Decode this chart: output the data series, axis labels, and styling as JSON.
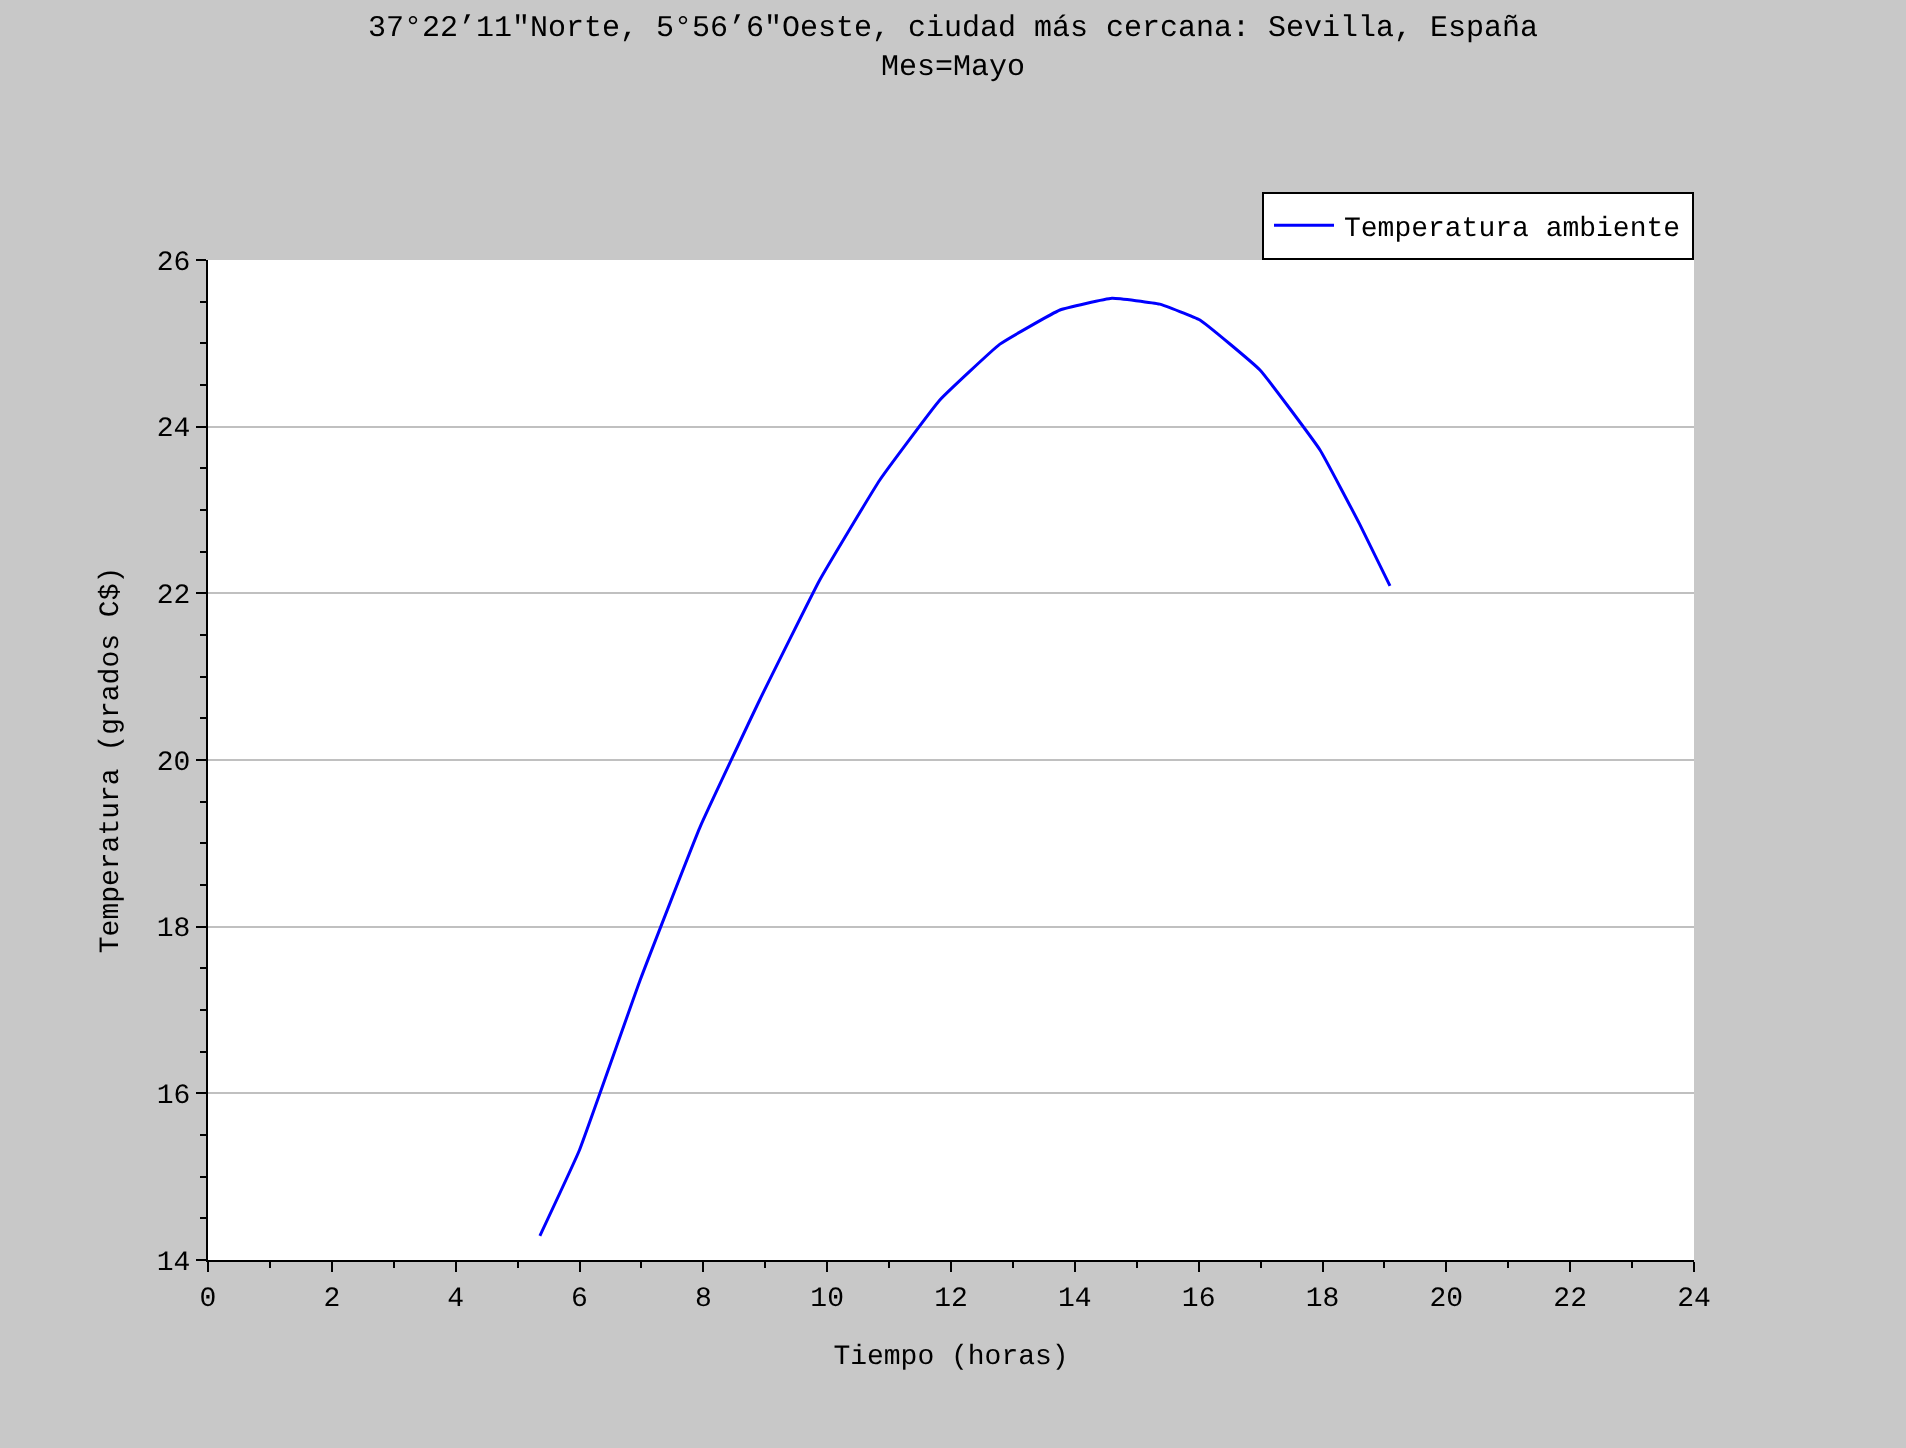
{
  "chart_data": {
    "type": "line",
    "title": "37°22’11\"Norte, 5°56’6\"Oeste, ciudad más cercana: Sevilla, España\nMes=Mayo",
    "xlabel": "Tiempo (horas)",
    "ylabel": "Temperatura (grados C$)",
    "xlim": [
      0,
      24
    ],
    "xticks": [
      0,
      2,
      4,
      6,
      8,
      10,
      12,
      14,
      16,
      18,
      20,
      22,
      24
    ],
    "ylim": [
      14,
      26
    ],
    "yticks": [
      14,
      16,
      18,
      20,
      22,
      24,
      26
    ],
    "grid": "y",
    "legend": "top right",
    "marker": "none",
    "line_style": "solid",
    "series": [
      {
        "name": "Temperatura ambiente",
        "color": "#0000ff",
        "x": [
          5.36,
          6.0,
          6.98,
          7.95,
          8.91,
          9.88,
          10.85,
          11.82,
          12.79,
          13.76,
          14.6,
          15.37,
          16.02,
          16.99,
          17.96,
          18.6,
          19.09
        ],
        "values": [
          14.29,
          15.32,
          17.36,
          19.2,
          20.72,
          22.16,
          23.36,
          24.32,
          24.99,
          25.4,
          25.54,
          25.47,
          25.28,
          24.68,
          23.72,
          22.83,
          22.09
        ]
      }
    ]
  }
}
